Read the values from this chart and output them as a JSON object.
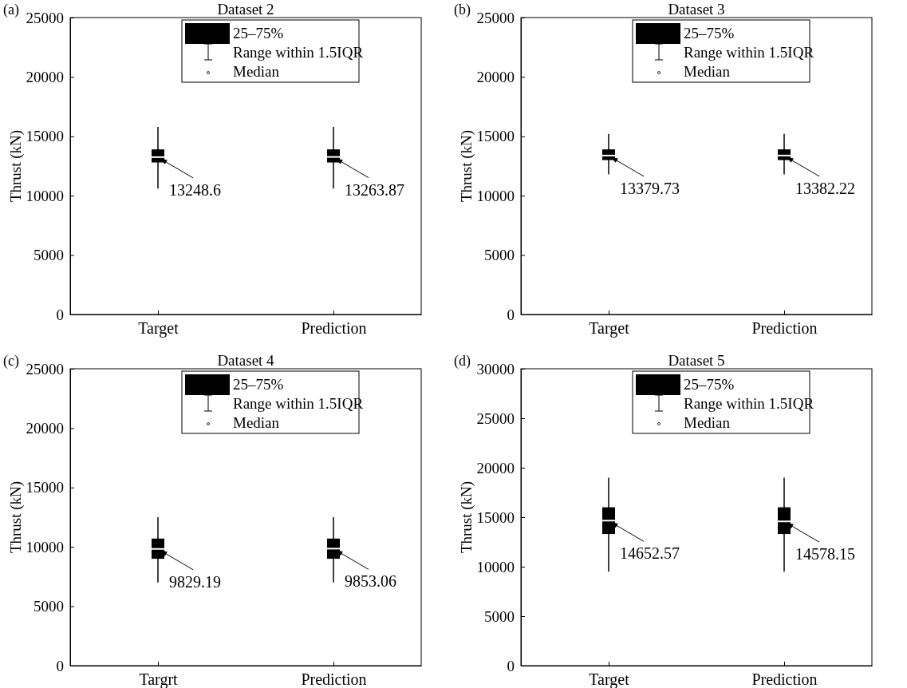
{
  "chart_data": [
    {
      "type": "box",
      "title": "Dataset 2",
      "ylabel": "Thrust (kN)",
      "categories": [
        "Target",
        "Prediction"
      ],
      "ylim": [
        0,
        25000
      ],
      "yticks": [
        0,
        5000,
        10000,
        15000,
        20000,
        25000
      ],
      "color": "#000000",
      "boxes": [
        {
          "low": 10600,
          "q1": 12800,
          "median": 13248.6,
          "q3": 13900,
          "high": 15800
        },
        {
          "low": 10600,
          "q1": 12800,
          "median": 13263.87,
          "q3": 13900,
          "high": 15800
        }
      ],
      "annotations": [
        "(a)",
        "25–75%",
        "Range within 1.5IQR",
        "Median",
        {
          "text": "13248.6",
          "x": "Target",
          "y": 13248.6
        },
        {
          "text": "13263.87",
          "x": "Prediction",
          "y": 13263.87
        }
      ]
    },
    {
      "type": "box",
      "title": "Dataset 3",
      "ylabel": "Thrust (kN)",
      "categories": [
        "Target",
        "Prediction"
      ],
      "ylim": [
        0,
        25000
      ],
      "yticks": [
        0,
        5000,
        10000,
        15000,
        20000,
        25000
      ],
      "color": "#000000",
      "boxes": [
        {
          "low": 11800,
          "q1": 13000,
          "median": 13379.73,
          "q3": 13900,
          "high": 15200
        },
        {
          "low": 11800,
          "q1": 13000,
          "median": 13382.22,
          "q3": 13900,
          "high": 15200
        }
      ],
      "annotations": [
        "(b)",
        "25–75%",
        "Range within 1.5IQR",
        "Median",
        {
          "text": "13379.73",
          "x": "Target",
          "y": 13379.73
        },
        {
          "text": "13382.22",
          "x": "Prediction",
          "y": 13382.22
        }
      ]
    },
    {
      "type": "box",
      "title": "Dataset 4",
      "ylabel": "Thrust (kN)",
      "categories": [
        "Targrt",
        "Prediction"
      ],
      "ylim": [
        0,
        25000
      ],
      "yticks": [
        0,
        5000,
        10000,
        15000,
        20000,
        25000
      ],
      "color": "#000000",
      "boxes": [
        {
          "low": 7000,
          "q1": 9000,
          "median": 9829.19,
          "q3": 10700,
          "high": 12500
        },
        {
          "low": 7000,
          "q1": 9000,
          "median": 9853.06,
          "q3": 10700,
          "high": 12500
        }
      ],
      "annotations": [
        "(c)",
        "25–75%",
        "Range within 1.5IQR",
        "Median",
        {
          "text": "9829.19",
          "x": "Targrt",
          "y": 9829.19
        },
        {
          "text": "9853.06",
          "x": "Prediction",
          "y": 9853.06
        }
      ]
    },
    {
      "type": "box",
      "title": "Dataset 5",
      "ylabel": "Thrust (kN)",
      "categories": [
        "Target",
        "Prediction"
      ],
      "ylim": [
        0,
        30000
      ],
      "yticks": [
        0,
        5000,
        10000,
        15000,
        20000,
        25000,
        30000
      ],
      "color": "#000000",
      "boxes": [
        {
          "low": 9500,
          "q1": 13300,
          "median": 14652.57,
          "q3": 16000,
          "high": 19000
        },
        {
          "low": 9500,
          "q1": 13300,
          "median": 14578.15,
          "q3": 16000,
          "high": 19000
        }
      ],
      "annotations": [
        "(d)",
        "25–75%",
        "Range within 1.5IQR",
        "Median",
        {
          "text": "14652.57",
          "x": "Target",
          "y": 14652.57
        },
        {
          "text": "14578.15",
          "x": "Prediction",
          "y": 14578.15
        }
      ]
    }
  ]
}
